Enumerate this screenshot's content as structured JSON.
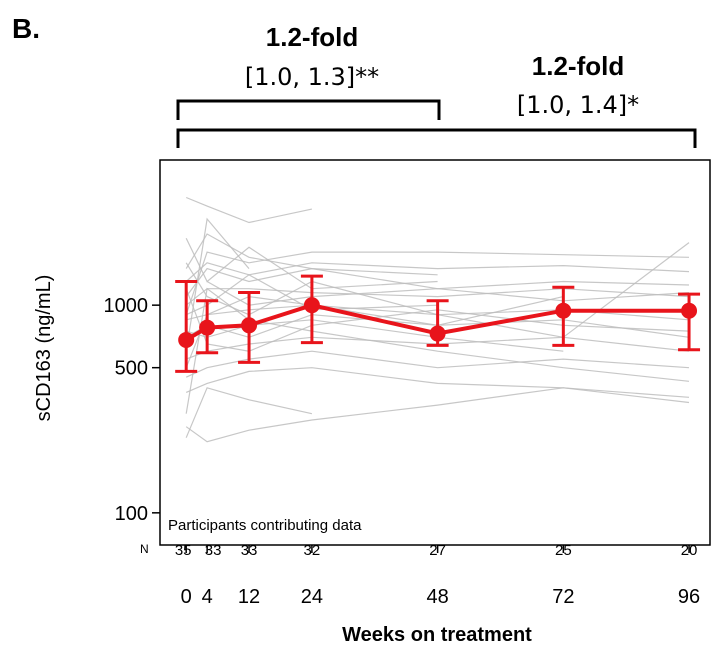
{
  "panel_label": "B.",
  "annotations": [
    {
      "fold": "1.2-fold",
      "ci": "[1.0, 1.3]**",
      "from_week": 0,
      "to_week": 48
    },
    {
      "fold": "1.2-fold",
      "ci": "[1.0, 1.4]*",
      "from_week": 0,
      "to_week": 96
    }
  ],
  "participants_label": "Participants contributing data",
  "n_label": "N",
  "colors": {
    "mean_line": "#e8141b",
    "individual_lines": "#bdbdbd",
    "axis": "#000000"
  },
  "chart_data": {
    "type": "line",
    "xlabel": "Weeks on treatment",
    "ylabel": "sCD163 (ng/mL)",
    "y_scale": "log",
    "ylim": [
      70,
      5000
    ],
    "xlim": [
      -5,
      100
    ],
    "x_ticks": [
      0,
      4,
      12,
      24,
      48,
      72,
      96
    ],
    "y_ticks": [
      100,
      500,
      1000
    ],
    "x": [
      0,
      4,
      12,
      24,
      48,
      72,
      96
    ],
    "series": [
      {
        "values": [
          680,
          780,
          800,
          1000,
          730,
          940,
          940
        ],
        "ci_low": [
          480,
          590,
          530,
          660,
          640,
          640,
          610
        ],
        "ci_high": [
          1300,
          1050,
          1150,
          1380,
          1050,
          1220,
          1130
        ]
      }
    ],
    "n_counts": [
      "35",
      "33",
      "33",
      "32",
      "27",
      "25",
      "20"
    ],
    "individual_trajectories": [
      {
        "x": [
          0,
          4,
          12,
          24
        ],
        "values": [
          3300,
          3000,
          2500,
          2900
        ]
      },
      {
        "x": [
          0,
          4,
          12,
          24,
          48
        ],
        "values": [
          1500,
          2200,
          1700,
          1500,
          1400
        ]
      },
      {
        "x": [
          0,
          4,
          12,
          24,
          48,
          72,
          96
        ],
        "values": [
          900,
          1800,
          1600,
          1800,
          1800,
          1750,
          1700
        ]
      },
      {
        "x": [
          0,
          4,
          12,
          24,
          48,
          72,
          96
        ],
        "values": [
          1300,
          1600,
          1400,
          1600,
          1500,
          1550,
          1450
        ]
      },
      {
        "x": [
          0,
          4,
          12,
          24,
          48,
          72,
          96
        ],
        "values": [
          1100,
          1500,
          1300,
          1500,
          1200,
          1300,
          1250
        ]
      },
      {
        "x": [
          0,
          4,
          12,
          24,
          48,
          72,
          96
        ],
        "values": [
          1000,
          1200,
          1200,
          1150,
          1100,
          1200,
          1100
        ]
      },
      {
        "x": [
          0,
          4,
          12,
          24,
          48,
          72,
          96
        ],
        "values": [
          850,
          900,
          950,
          1000,
          900,
          950,
          850
        ]
      },
      {
        "x": [
          0,
          4,
          12,
          24,
          48,
          72,
          96
        ],
        "values": [
          700,
          800,
          700,
          900,
          800,
          850,
          700
        ]
      },
      {
        "x": [
          0,
          4,
          12,
          24,
          48,
          72,
          96
        ],
        "values": [
          550,
          600,
          650,
          700,
          650,
          700,
          600
        ]
      },
      {
        "x": [
          0,
          4,
          12,
          24,
          48,
          72,
          96
        ],
        "values": [
          450,
          500,
          550,
          600,
          500,
          550,
          500
        ]
      },
      {
        "x": [
          0,
          4,
          12,
          24,
          48,
          72,
          96
        ],
        "values": [
          380,
          420,
          480,
          500,
          420,
          400,
          360
        ]
      },
      {
        "x": [
          0,
          4,
          12,
          24,
          48,
          72,
          96
        ],
        "values": [
          300,
          1200,
          850,
          750,
          600,
          500,
          430
        ]
      },
      {
        "x": [
          0,
          4,
          12,
          24,
          48,
          72,
          96
        ],
        "values": [
          260,
          220,
          250,
          280,
          330,
          400,
          340
        ]
      },
      {
        "x": [
          0,
          4,
          12,
          24,
          48,
          72,
          96
        ],
        "values": [
          1600,
          1100,
          900,
          1300,
          900,
          700,
          2000
        ]
      },
      {
        "x": [
          0,
          4,
          12,
          24,
          48
        ],
        "values": [
          2100,
          1300,
          1900,
          1200,
          1300
        ]
      },
      {
        "x": [
          0,
          4,
          12,
          24,
          48,
          72
        ],
        "values": [
          500,
          900,
          1100,
          1000,
          800,
          1100
        ]
      },
      {
        "x": [
          0,
          4,
          12,
          24,
          48,
          72,
          96
        ],
        "values": [
          1200,
          650,
          600,
          800,
          950,
          800,
          750
        ]
      },
      {
        "x": [
          0,
          4,
          12,
          24
        ],
        "values": [
          230,
          400,
          350,
          300
        ]
      },
      {
        "x": [
          0,
          4,
          12,
          24,
          48
        ],
        "values": [
          900,
          1000,
          1400,
          950,
          1000
        ]
      },
      {
        "x": [
          0,
          4,
          12
        ],
        "values": [
          600,
          2600,
          1500
        ]
      },
      {
        "x": [
          0,
          4,
          12,
          24,
          48,
          72
        ],
        "values": [
          750,
          700,
          800,
          850,
          700,
          600
        ]
      },
      {
        "x": [
          4,
          12,
          24,
          48,
          72,
          96
        ],
        "values": [
          1300,
          1000,
          1100,
          1200,
          1050,
          1150
        ]
      }
    ]
  }
}
